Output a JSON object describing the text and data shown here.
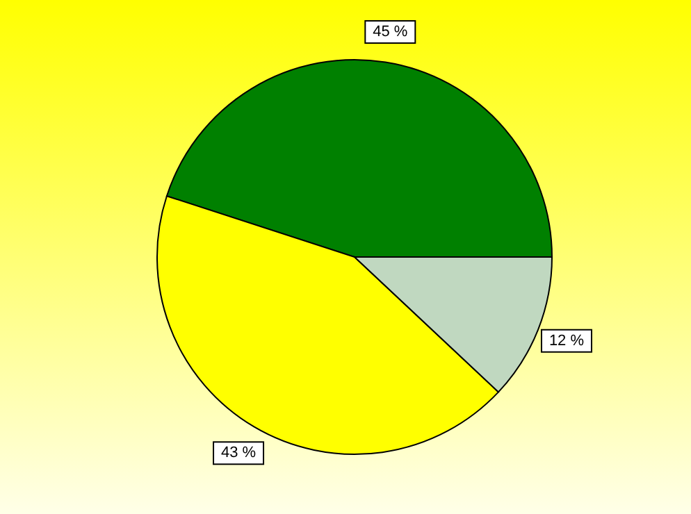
{
  "chart_data": {
    "type": "pie",
    "categories": [
      null,
      null,
      null
    ],
    "values": [
      45,
      43,
      12
    ],
    "colors": [
      "#008000",
      "#ffff00",
      "#c0d8c0"
    ],
    "value_labels": [
      "45 %",
      "43 %",
      "12 %"
    ],
    "legend": false
  }
}
